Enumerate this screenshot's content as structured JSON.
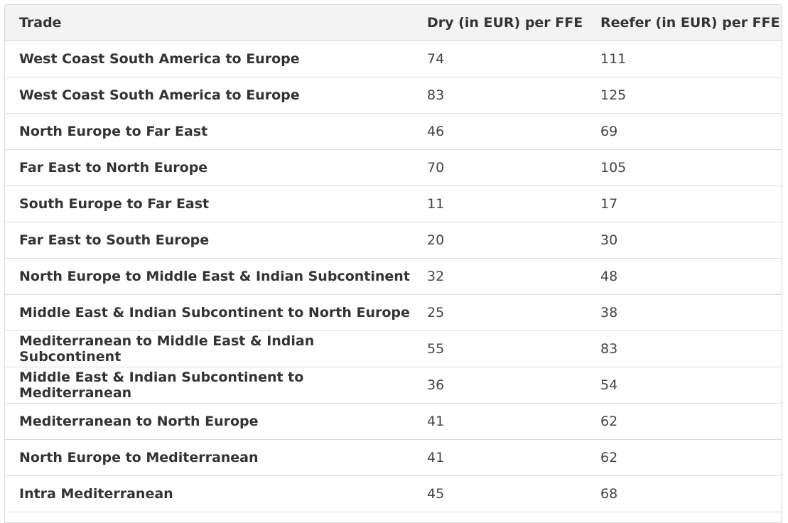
{
  "table": {
    "headers": [
      "Trade",
      "Dry (in EUR) per FFE",
      "Reefer (in EUR) per FFE"
    ],
    "rows": [
      {
        "trade": "West Coast South America to Europe",
        "dry": "74",
        "reefer": "111"
      },
      {
        "trade": "West Coast South America to Europe",
        "dry": "83",
        "reefer": "125"
      },
      {
        "trade": "North Europe to Far East",
        "dry": "46",
        "reefer": "69"
      },
      {
        "trade": "Far East to North Europe",
        "dry": "70",
        "reefer": "105"
      },
      {
        "trade": "South Europe to Far East",
        "dry": "11",
        "reefer": "17"
      },
      {
        "trade": "Far East to South Europe",
        "dry": "20",
        "reefer": "30"
      },
      {
        "trade": "North Europe to Middle East & Indian Subcontinent",
        "dry": "32",
        "reefer": "48"
      },
      {
        "trade": "Middle East & Indian Subcontinent to North Europe",
        "dry": "25",
        "reefer": "38"
      },
      {
        "trade": "Mediterranean to Middle East & Indian Subcontinent",
        "dry": "55",
        "reefer": "83"
      },
      {
        "trade": "Middle East & Indian Subcontinent to Mediterranean",
        "dry": "36",
        "reefer": "54"
      },
      {
        "trade": "Mediterranean to North Europe",
        "dry": "41",
        "reefer": "62"
      },
      {
        "trade": "North Europe to Mediterranean",
        "dry": "41",
        "reefer": "62"
      },
      {
        "trade": "Intra Mediterranean",
        "dry": "45",
        "reefer": "68"
      }
    ]
  }
}
